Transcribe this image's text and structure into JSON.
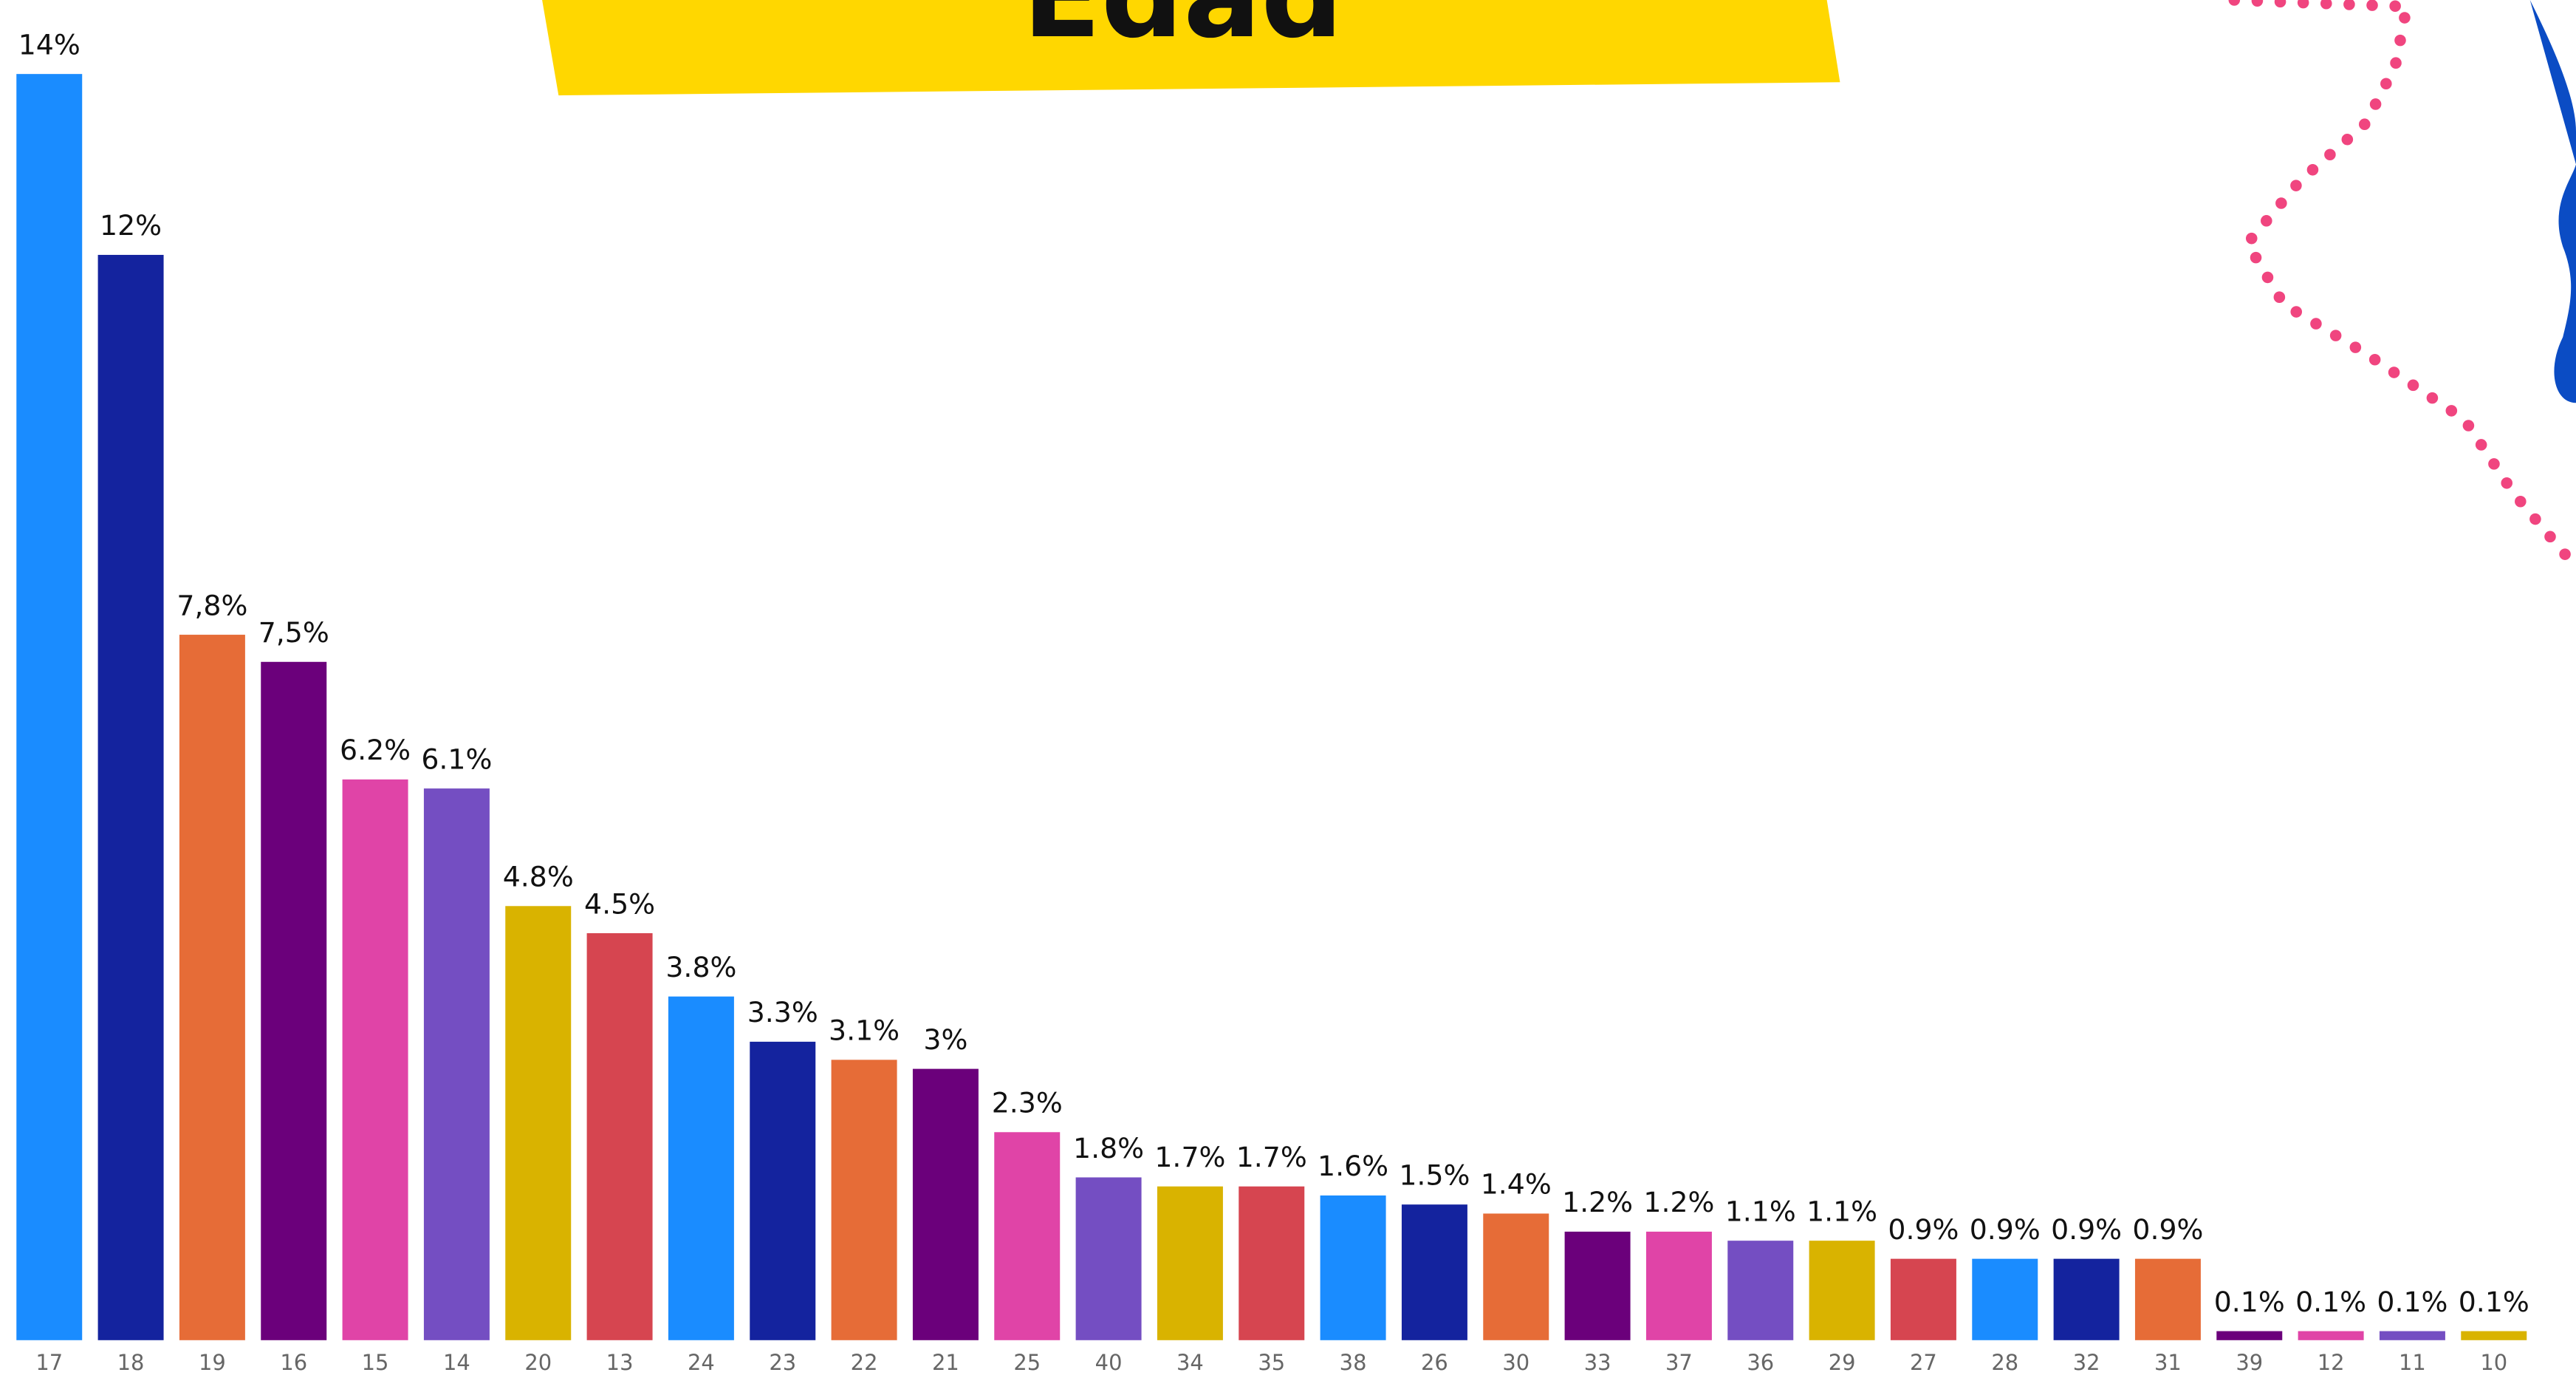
{
  "chart_data": {
    "type": "bar",
    "title": "Edad",
    "categories": [
      "17",
      "18",
      "19",
      "16",
      "15",
      "14",
      "20",
      "13",
      "24",
      "23",
      "22",
      "21",
      "25",
      "40",
      "34",
      "35",
      "38",
      "26",
      "30",
      "33",
      "37",
      "36",
      "29",
      "27",
      "28",
      "32",
      "31",
      "39",
      "12",
      "11",
      "10"
    ],
    "values": [
      14,
      12,
      7.8,
      7.5,
      6.2,
      6.1,
      4.8,
      4.5,
      3.8,
      3.3,
      3.1,
      3,
      2.3,
      1.8,
      1.7,
      1.7,
      1.6,
      1.5,
      1.4,
      1.2,
      1.2,
      1.1,
      1.1,
      0.9,
      0.9,
      0.9,
      0.9,
      0.1,
      0.1,
      0.1,
      0.1
    ],
    "value_labels": [
      "14%",
      "12%",
      "7,8%",
      "7,5%",
      "6.2%",
      "6.1%",
      "4.8%",
      "4.5%",
      "3.8%",
      "3.3%",
      "3.1%",
      "3%",
      "2.3%",
      "1.8%",
      "1.7%",
      "1.7%",
      "1.6%",
      "1.5%",
      "1.4%",
      "1.2%",
      "1.2%",
      "1.1%",
      "1.1%",
      "0.9%",
      "0.9%",
      "0.9%",
      "0.9%",
      "0.1%",
      "0.1%",
      "0.1%",
      "0.1%"
    ],
    "colors": [
      "#1a8cff",
      "#14239e",
      "#e66c37",
      "#6b007b",
      "#e044a7",
      "#744ec2",
      "#d9b300",
      "#d64550",
      "#1a8cff",
      "#14239e",
      "#e66c37",
      "#6b007b",
      "#e044a7",
      "#744ec2",
      "#d9b300",
      "#d64550",
      "#1a8cff",
      "#14239e",
      "#e66c37",
      "#6b007b",
      "#e044a7",
      "#744ec2",
      "#d9b300",
      "#d64550",
      "#1a8cff",
      "#14239e",
      "#e66c37",
      "#6b007b",
      "#e044a7",
      "#744ec2",
      "#d9b300"
    ],
    "ylim": [
      0,
      14
    ]
  }
}
